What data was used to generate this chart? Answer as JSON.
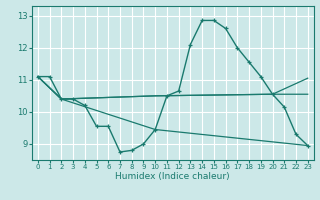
{
  "xlabel": "Humidex (Indice chaleur)",
  "bg_color": "#cce8e8",
  "line_color": "#1a7a6e",
  "grid_color": "#ffffff",
  "xlim": [
    -0.5,
    23.5
  ],
  "ylim": [
    8.5,
    13.3
  ],
  "yticks": [
    9,
    10,
    11,
    12,
    13
  ],
  "xticks": [
    0,
    1,
    2,
    3,
    4,
    5,
    6,
    7,
    8,
    9,
    10,
    11,
    12,
    13,
    14,
    15,
    16,
    17,
    18,
    19,
    20,
    21,
    22,
    23
  ],
  "line_main": {
    "x": [
      0,
      1,
      2,
      3,
      4,
      5,
      6,
      7,
      8,
      9,
      10,
      11,
      12,
      13,
      14,
      15,
      16,
      17,
      18,
      19,
      20,
      21,
      22,
      23
    ],
    "y": [
      11.1,
      11.1,
      10.4,
      10.4,
      10.2,
      9.55,
      9.55,
      8.75,
      8.8,
      9.0,
      9.45,
      10.5,
      10.65,
      12.1,
      12.85,
      12.85,
      12.6,
      12.0,
      11.55,
      11.1,
      10.55,
      10.15,
      9.3,
      8.95
    ]
  },
  "line_trend1": {
    "x": [
      0,
      2,
      10,
      23
    ],
    "y": [
      11.1,
      10.4,
      9.45,
      8.95
    ]
  },
  "line_trend2": {
    "x": [
      0,
      2,
      10,
      20,
      23
    ],
    "y": [
      11.1,
      10.4,
      10.5,
      10.55,
      10.55
    ]
  },
  "line_trend3": {
    "x": [
      0,
      2,
      10,
      20,
      23
    ],
    "y": [
      11.1,
      10.4,
      10.5,
      10.55,
      11.05
    ]
  }
}
